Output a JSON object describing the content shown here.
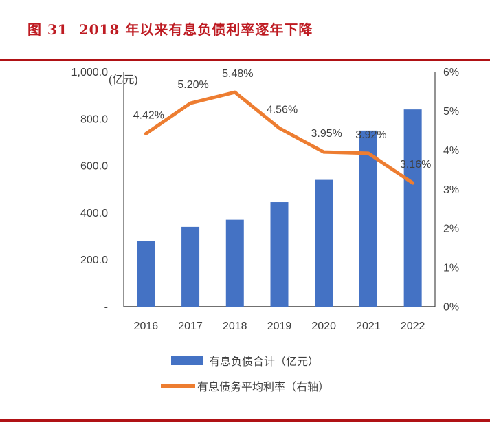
{
  "figure": {
    "caption": "图 31  2018 年以来有息负债利率逐年下降"
  },
  "chart_data": {
    "type": "combo_bar_line",
    "title": "图 31  2018 年以来有息负债利率逐年下降",
    "categories": [
      "2016",
      "2017",
      "2018",
      "2019",
      "2020",
      "2021",
      "2022"
    ],
    "series": [
      {
        "name": "有息负债合计（亿元）",
        "type": "bar",
        "axis": "left",
        "color": "#4472c4",
        "values": [
          280,
          340,
          370,
          445,
          540,
          750,
          840
        ]
      },
      {
        "name": "有息债务平均利率（右轴）",
        "type": "line",
        "axis": "right",
        "color": "#ed7d31",
        "values": [
          4.42,
          5.2,
          5.48,
          4.56,
          3.95,
          3.92,
          3.16
        ],
        "labels": [
          "4.42%",
          "5.20%",
          "5.48%",
          "4.56%",
          "3.95%",
          "3.92%",
          "3.16%"
        ]
      }
    ],
    "left_axis": {
      "unit": "(亿元)",
      "min": 0,
      "max": 1000,
      "ticks": [
        "1,000.0",
        "800.0",
        "600.0",
        "400.0",
        "200.0",
        "-"
      ]
    },
    "right_axis": {
      "min": 0,
      "max": 6,
      "ticks": [
        "6%",
        "5%",
        "4%",
        "3%",
        "2%",
        "1%",
        "0%"
      ]
    },
    "grid": "off",
    "legend_position": "bottom"
  },
  "colors": {
    "divider_red": "#b01215",
    "caption_red": "#be1b22",
    "bar_blue": "#4472c4",
    "line_orange": "#ed7d31",
    "text_gray": "#3f3f3f",
    "axis_gray": "#595959"
  }
}
